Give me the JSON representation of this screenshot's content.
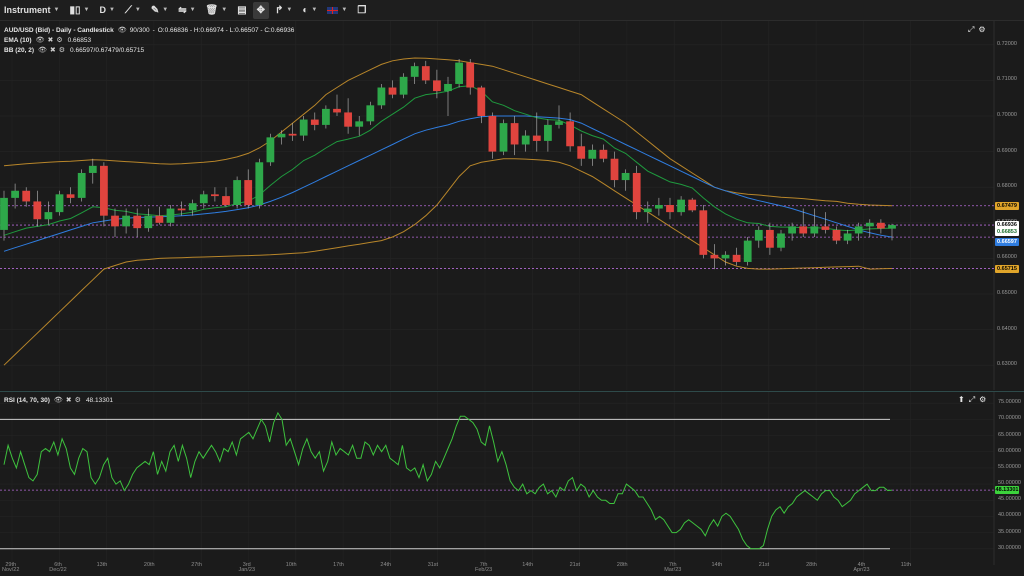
{
  "toolbar": {
    "instrument_label": "Instrument",
    "timeframe_label": "D",
    "flag_icon": "uk-flag-icon"
  },
  "main_legend": {
    "title": "AUD/USD (Bid) - Daily - Candlestick",
    "range": "90/300",
    "ohlc": "O:0.66836 - H:0.66974 - L:0.66507 - C:0.66936",
    "ema_label": "EMA (10)",
    "ema_value": "0.66853",
    "bb_label": "BB (20, 2)",
    "bb_value": "0.66597/0.67479/0.65715"
  },
  "rsi_legend": {
    "label": "RSI (14, 70, 30)",
    "value": "48.13301"
  },
  "price_axis": [
    "0.72000",
    "0.71000",
    "0.70000",
    "0.69000",
    "0.68000",
    "0.67000",
    "0.66000",
    "0.65000",
    "0.64000",
    "0.63000"
  ],
  "price_tags": [
    {
      "text": "0.67479",
      "bg": "#e0a52a",
      "fg": "#000000"
    },
    {
      "text": "0.66936",
      "bg": "#ffffff",
      "fg": "#000000"
    },
    {
      "text": "0.66853",
      "bg": "#ffffff",
      "fg": "#1b6e2a"
    },
    {
      "text": "0.66597",
      "bg": "#2f7de0",
      "fg": "#ffffff"
    },
    {
      "text": "0.65715",
      "bg": "#e0a52a",
      "fg": "#000000"
    }
  ],
  "rsi_axis": [
    "75.00000",
    "70.00000",
    "65.00000",
    "60.00000",
    "55.00000",
    "50.00000",
    "45.00000",
    "40.00000",
    "35.00000",
    "30.00000"
  ],
  "rsi_tag": {
    "text": "48.13301",
    "bg": "#3cd23c",
    "fg": "#000000"
  },
  "dates": [
    {
      "day": "29th",
      "month": "Nov/22"
    },
    {
      "day": "6th",
      "month": "Dec/22"
    },
    {
      "day": "13th",
      "month": ""
    },
    {
      "day": "20th",
      "month": ""
    },
    {
      "day": "27th",
      "month": ""
    },
    {
      "day": "3rd",
      "month": "Jan/23"
    },
    {
      "day": "10th",
      "month": ""
    },
    {
      "day": "17th",
      "month": ""
    },
    {
      "day": "24th",
      "month": ""
    },
    {
      "day": "31st",
      "month": ""
    },
    {
      "day": "7th",
      "month": "Feb/23"
    },
    {
      "day": "14th",
      "month": ""
    },
    {
      "day": "21st",
      "month": ""
    },
    {
      "day": "28th",
      "month": ""
    },
    {
      "day": "7th",
      "month": "Mar/23"
    },
    {
      "day": "14th",
      "month": ""
    },
    {
      "day": "21st",
      "month": ""
    },
    {
      "day": "28th",
      "month": ""
    },
    {
      "day": "4th",
      "month": "Apr/23"
    },
    {
      "day": "11th",
      "month": ""
    }
  ],
  "colors": {
    "bull": "#2ea84a",
    "bear": "#e0443e",
    "ema": "#1f9a3e",
    "bb_band": "#b8862a",
    "bb_mid": "#2f7de0",
    "rsi_line": "#3ec23e",
    "dotted": "#b36ad6"
  },
  "chart_data": [
    {
      "type": "candlestick",
      "title": "AUD/USD (Bid) - Daily - Candlestick",
      "ylim": [
        0.625,
        0.725
      ],
      "candles": [
        {
          "o": 0.668,
          "h": 0.679,
          "l": 0.665,
          "c": 0.677
        },
        {
          "o": 0.677,
          "h": 0.681,
          "l": 0.674,
          "c": 0.679
        },
        {
          "o": 0.679,
          "h": 0.68,
          "l": 0.6745,
          "c": 0.676
        },
        {
          "o": 0.676,
          "h": 0.679,
          "l": 0.669,
          "c": 0.671
        },
        {
          "o": 0.671,
          "h": 0.676,
          "l": 0.6695,
          "c": 0.673
        },
        {
          "o": 0.673,
          "h": 0.679,
          "l": 0.672,
          "c": 0.678
        },
        {
          "o": 0.678,
          "h": 0.68,
          "l": 0.6755,
          "c": 0.677
        },
        {
          "o": 0.677,
          "h": 0.685,
          "l": 0.676,
          "c": 0.684
        },
        {
          "o": 0.684,
          "h": 0.688,
          "l": 0.681,
          "c": 0.686
        },
        {
          "o": 0.686,
          "h": 0.687,
          "l": 0.669,
          "c": 0.672
        },
        {
          "o": 0.672,
          "h": 0.674,
          "l": 0.666,
          "c": 0.669
        },
        {
          "o": 0.669,
          "h": 0.674,
          "l": 0.667,
          "c": 0.672
        },
        {
          "o": 0.672,
          "h": 0.674,
          "l": 0.666,
          "c": 0.6685
        },
        {
          "o": 0.6685,
          "h": 0.674,
          "l": 0.6675,
          "c": 0.672
        },
        {
          "o": 0.672,
          "h": 0.6745,
          "l": 0.6695,
          "c": 0.67
        },
        {
          "o": 0.67,
          "h": 0.675,
          "l": 0.669,
          "c": 0.674
        },
        {
          "o": 0.674,
          "h": 0.676,
          "l": 0.672,
          "c": 0.6735
        },
        {
          "o": 0.6735,
          "h": 0.6765,
          "l": 0.672,
          "c": 0.6755
        },
        {
          "o": 0.6755,
          "h": 0.679,
          "l": 0.674,
          "c": 0.678
        },
        {
          "o": 0.678,
          "h": 0.68,
          "l": 0.676,
          "c": 0.6775
        },
        {
          "o": 0.6775,
          "h": 0.68,
          "l": 0.6745,
          "c": 0.675
        },
        {
          "o": 0.675,
          "h": 0.683,
          "l": 0.674,
          "c": 0.682
        },
        {
          "o": 0.682,
          "h": 0.685,
          "l": 0.674,
          "c": 0.675
        },
        {
          "o": 0.675,
          "h": 0.688,
          "l": 0.674,
          "c": 0.687
        },
        {
          "o": 0.687,
          "h": 0.695,
          "l": 0.686,
          "c": 0.694
        },
        {
          "o": 0.694,
          "h": 0.696,
          "l": 0.692,
          "c": 0.695
        },
        {
          "o": 0.695,
          "h": 0.698,
          "l": 0.693,
          "c": 0.6945
        },
        {
          "o": 0.6945,
          "h": 0.7,
          "l": 0.693,
          "c": 0.699
        },
        {
          "o": 0.699,
          "h": 0.701,
          "l": 0.696,
          "c": 0.6975
        },
        {
          "o": 0.6975,
          "h": 0.703,
          "l": 0.6965,
          "c": 0.702
        },
        {
          "o": 0.702,
          "h": 0.706,
          "l": 0.7,
          "c": 0.701
        },
        {
          "o": 0.701,
          "h": 0.705,
          "l": 0.695,
          "c": 0.697
        },
        {
          "o": 0.697,
          "h": 0.7,
          "l": 0.6945,
          "c": 0.6985
        },
        {
          "o": 0.6985,
          "h": 0.704,
          "l": 0.6975,
          "c": 0.703
        },
        {
          "o": 0.703,
          "h": 0.709,
          "l": 0.702,
          "c": 0.708
        },
        {
          "o": 0.708,
          "h": 0.71,
          "l": 0.705,
          "c": 0.706
        },
        {
          "o": 0.706,
          "h": 0.712,
          "l": 0.705,
          "c": 0.711
        },
        {
          "o": 0.711,
          "h": 0.715,
          "l": 0.709,
          "c": 0.714
        },
        {
          "o": 0.714,
          "h": 0.7155,
          "l": 0.709,
          "c": 0.71
        },
        {
          "o": 0.71,
          "h": 0.713,
          "l": 0.705,
          "c": 0.707
        },
        {
          "o": 0.707,
          "h": 0.711,
          "l": 0.7,
          "c": 0.709
        },
        {
          "o": 0.709,
          "h": 0.716,
          "l": 0.708,
          "c": 0.715
        },
        {
          "o": 0.715,
          "h": 0.716,
          "l": 0.706,
          "c": 0.708
        },
        {
          "o": 0.708,
          "h": 0.7085,
          "l": 0.698,
          "c": 0.7
        },
        {
          "o": 0.7,
          "h": 0.701,
          "l": 0.688,
          "c": 0.69
        },
        {
          "o": 0.69,
          "h": 0.699,
          "l": 0.689,
          "c": 0.698
        },
        {
          "o": 0.698,
          "h": 0.7,
          "l": 0.689,
          "c": 0.692
        },
        {
          "o": 0.692,
          "h": 0.696,
          "l": 0.69,
          "c": 0.6945
        },
        {
          "o": 0.6945,
          "h": 0.701,
          "l": 0.69,
          "c": 0.693
        },
        {
          "o": 0.693,
          "h": 0.699,
          "l": 0.69,
          "c": 0.6975
        },
        {
          "o": 0.6975,
          "h": 0.703,
          "l": 0.6965,
          "c": 0.6985
        },
        {
          "o": 0.6985,
          "h": 0.701,
          "l": 0.69,
          "c": 0.6915
        },
        {
          "o": 0.6915,
          "h": 0.695,
          "l": 0.686,
          "c": 0.688
        },
        {
          "o": 0.688,
          "h": 0.692,
          "l": 0.686,
          "c": 0.6905
        },
        {
          "o": 0.6905,
          "h": 0.692,
          "l": 0.687,
          "c": 0.688
        },
        {
          "o": 0.688,
          "h": 0.69,
          "l": 0.68,
          "c": 0.682
        },
        {
          "o": 0.682,
          "h": 0.685,
          "l": 0.679,
          "c": 0.684
        },
        {
          "o": 0.684,
          "h": 0.686,
          "l": 0.671,
          "c": 0.673
        },
        {
          "o": 0.673,
          "h": 0.676,
          "l": 0.67,
          "c": 0.674
        },
        {
          "o": 0.674,
          "h": 0.677,
          "l": 0.672,
          "c": 0.675
        },
        {
          "o": 0.675,
          "h": 0.677,
          "l": 0.671,
          "c": 0.673
        },
        {
          "o": 0.673,
          "h": 0.6775,
          "l": 0.672,
          "c": 0.6765
        },
        {
          "o": 0.6765,
          "h": 0.677,
          "l": 0.673,
          "c": 0.6735
        },
        {
          "o": 0.6735,
          "h": 0.675,
          "l": 0.66,
          "c": 0.661
        },
        {
          "o": 0.661,
          "h": 0.664,
          "l": 0.657,
          "c": 0.66
        },
        {
          "o": 0.66,
          "h": 0.662,
          "l": 0.658,
          "c": 0.661
        },
        {
          "o": 0.661,
          "h": 0.663,
          "l": 0.658,
          "c": 0.659
        },
        {
          "o": 0.659,
          "h": 0.666,
          "l": 0.658,
          "c": 0.665
        },
        {
          "o": 0.665,
          "h": 0.669,
          "l": 0.663,
          "c": 0.668
        },
        {
          "o": 0.668,
          "h": 0.67,
          "l": 0.661,
          "c": 0.663
        },
        {
          "o": 0.663,
          "h": 0.668,
          "l": 0.662,
          "c": 0.667
        },
        {
          "o": 0.667,
          "h": 0.67,
          "l": 0.665,
          "c": 0.669
        },
        {
          "o": 0.669,
          "h": 0.674,
          "l": 0.666,
          "c": 0.667
        },
        {
          "o": 0.667,
          "h": 0.674,
          "l": 0.666,
          "c": 0.669
        },
        {
          "o": 0.669,
          "h": 0.673,
          "l": 0.667,
          "c": 0.668
        },
        {
          "o": 0.668,
          "h": 0.669,
          "l": 0.664,
          "c": 0.665
        },
        {
          "o": 0.665,
          "h": 0.668,
          "l": 0.664,
          "c": 0.667
        },
        {
          "o": 0.667,
          "h": 0.67,
          "l": 0.665,
          "c": 0.669
        },
        {
          "o": 0.669,
          "h": 0.671,
          "l": 0.666,
          "c": 0.67
        },
        {
          "o": 0.67,
          "h": 0.671,
          "l": 0.667,
          "c": 0.6684
        },
        {
          "o": 0.66836,
          "h": 0.66974,
          "l": 0.66507,
          "c": 0.66936
        }
      ],
      "ema": [
        0.6665,
        0.6675,
        0.6685,
        0.669,
        0.6695,
        0.6705,
        0.6712,
        0.6728,
        0.6745,
        0.6742,
        0.6735,
        0.6732,
        0.6725,
        0.6723,
        0.672,
        0.6722,
        0.6725,
        0.673,
        0.6738,
        0.6742,
        0.6745,
        0.6755,
        0.676,
        0.6778,
        0.6805,
        0.683,
        0.685,
        0.6875,
        0.689,
        0.691,
        0.6928,
        0.6935,
        0.6943,
        0.696,
        0.6985,
        0.7005,
        0.7025,
        0.705,
        0.706,
        0.7064,
        0.707,
        0.7082,
        0.7085,
        0.707,
        0.704,
        0.703,
        0.7015,
        0.7005,
        0.6995,
        0.699,
        0.6988,
        0.6975,
        0.6958,
        0.6945,
        0.6935,
        0.691,
        0.6895,
        0.687,
        0.6845,
        0.683,
        0.6815,
        0.6808,
        0.6798,
        0.677,
        0.6745,
        0.6725,
        0.671,
        0.67,
        0.6698,
        0.669,
        0.6688,
        0.6688,
        0.6686,
        0.6686,
        0.6685,
        0.668,
        0.6678,
        0.668,
        0.6683,
        0.6684,
        0.66853
      ],
      "bb_upper": [
        0.686,
        0.6863,
        0.6866,
        0.6868,
        0.687,
        0.6872,
        0.6873,
        0.6875,
        0.6877,
        0.6876,
        0.6874,
        0.6872,
        0.687,
        0.6868,
        0.6866,
        0.6865,
        0.6866,
        0.6868,
        0.687,
        0.6873,
        0.6878,
        0.6885,
        0.6895,
        0.691,
        0.693,
        0.6955,
        0.698,
        0.7005,
        0.703,
        0.706,
        0.708,
        0.71,
        0.7115,
        0.713,
        0.7145,
        0.7155,
        0.716,
        0.7163,
        0.7162,
        0.716,
        0.7158,
        0.7155,
        0.715,
        0.7145,
        0.714,
        0.713,
        0.712,
        0.711,
        0.71,
        0.709,
        0.708,
        0.707,
        0.706,
        0.704,
        0.702,
        0.7,
        0.698,
        0.6955,
        0.693,
        0.6905,
        0.688,
        0.686,
        0.684,
        0.682,
        0.68,
        0.679,
        0.6784,
        0.678,
        0.6778,
        0.6775,
        0.6772,
        0.677,
        0.6768,
        0.6765,
        0.6762,
        0.676,
        0.6755,
        0.6752,
        0.675,
        0.6749,
        0.67479
      ],
      "bb_mid": [
        0.662,
        0.663,
        0.664,
        0.665,
        0.666,
        0.667,
        0.668,
        0.669,
        0.67,
        0.6705,
        0.671,
        0.6713,
        0.6715,
        0.6716,
        0.6717,
        0.6718,
        0.672,
        0.6722,
        0.6725,
        0.6728,
        0.6732,
        0.6737,
        0.6742,
        0.675,
        0.676,
        0.6772,
        0.6785,
        0.68,
        0.6815,
        0.683,
        0.6845,
        0.686,
        0.6875,
        0.689,
        0.6905,
        0.692,
        0.6935,
        0.695,
        0.696,
        0.6968,
        0.6975,
        0.6985,
        0.6992,
        0.6998,
        0.7,
        0.7,
        0.7,
        0.7,
        0.6998,
        0.6996,
        0.6994,
        0.699,
        0.698,
        0.6965,
        0.695,
        0.6935,
        0.692,
        0.6905,
        0.689,
        0.6875,
        0.686,
        0.6845,
        0.683,
        0.6815,
        0.68,
        0.679,
        0.678,
        0.677,
        0.6762,
        0.6755,
        0.6748,
        0.674,
        0.673,
        0.672,
        0.671,
        0.67,
        0.669,
        0.668,
        0.6672,
        0.6665,
        0.66597
      ],
      "bb_lower": [
        0.63,
        0.633,
        0.636,
        0.639,
        0.642,
        0.645,
        0.648,
        0.651,
        0.654,
        0.657,
        0.658,
        0.659,
        0.6595,
        0.6597,
        0.66,
        0.6601,
        0.6602,
        0.6603,
        0.6604,
        0.6605,
        0.6606,
        0.6607,
        0.6608,
        0.6609,
        0.661,
        0.6612,
        0.6614,
        0.6616,
        0.662,
        0.6625,
        0.663,
        0.6635,
        0.664,
        0.6645,
        0.665,
        0.666,
        0.6675,
        0.6695,
        0.672,
        0.675,
        0.679,
        0.683,
        0.686,
        0.687,
        0.6875,
        0.688,
        0.688,
        0.6879,
        0.6877,
        0.6875,
        0.687,
        0.686,
        0.6845,
        0.683,
        0.681,
        0.679,
        0.677,
        0.675,
        0.673,
        0.671,
        0.669,
        0.667,
        0.665,
        0.663,
        0.661,
        0.659,
        0.6578,
        0.6572,
        0.657,
        0.657,
        0.6571,
        0.6572,
        0.6573,
        0.6574,
        0.6575,
        0.6576,
        0.6577,
        0.6578,
        0.657,
        0.6571,
        0.65715
      ],
      "levels": [
        0.67479,
        0.66936,
        0.66597,
        0.65715
      ]
    },
    {
      "type": "line",
      "title": "RSI (14, 70, 30)",
      "ylim": [
        29,
        76
      ],
      "overbought": 70,
      "oversold": 30,
      "values": [
        56,
        62,
        58,
        55,
        60,
        56,
        52,
        51,
        53,
        60,
        61,
        60,
        63,
        59,
        64,
        61,
        55,
        53,
        58,
        61,
        60,
        52,
        50,
        52,
        56,
        58,
        52,
        50,
        51,
        48,
        50,
        53,
        55,
        56,
        57,
        56,
        60,
        53,
        57,
        54,
        60,
        62,
        57,
        62,
        58,
        52,
        57,
        60,
        58,
        60,
        62,
        60,
        57,
        61,
        60,
        63,
        59,
        64,
        65,
        66,
        64,
        67,
        70,
        68,
        63,
        69,
        72,
        70,
        62,
        64,
        60,
        56,
        61,
        64,
        60,
        58,
        60,
        54,
        57,
        63,
        59,
        61,
        60,
        59,
        62,
        58,
        58,
        63,
        62,
        59,
        62,
        60,
        62,
        58,
        57,
        56,
        62,
        55,
        54,
        55,
        52,
        56,
        51,
        53,
        57,
        55,
        58,
        61,
        64,
        68,
        71,
        71,
        70,
        69,
        67,
        63,
        62,
        68,
        63,
        57,
        60,
        56,
        51,
        49,
        48,
        50,
        47,
        48,
        47,
        49,
        50,
        47,
        48,
        46,
        49,
        48,
        51,
        52,
        48,
        50,
        49,
        46,
        48,
        46,
        45,
        45,
        44,
        44,
        47,
        47,
        50,
        49,
        48,
        46,
        46,
        44,
        42,
        39,
        40,
        39,
        37,
        35,
        35,
        36,
        38,
        39,
        38,
        37,
        36,
        34,
        37,
        39,
        37,
        40,
        41,
        40,
        38,
        36,
        33,
        31,
        30,
        30,
        30,
        31,
        36,
        40,
        42,
        43,
        41,
        43,
        44,
        46,
        47,
        48,
        47,
        46,
        45,
        47,
        48,
        48,
        46,
        45,
        43,
        44,
        45,
        47,
        48,
        49,
        50,
        48,
        48,
        49,
        49,
        48,
        48.13
      ],
      "levels": [
        48.13301
      ]
    }
  ]
}
